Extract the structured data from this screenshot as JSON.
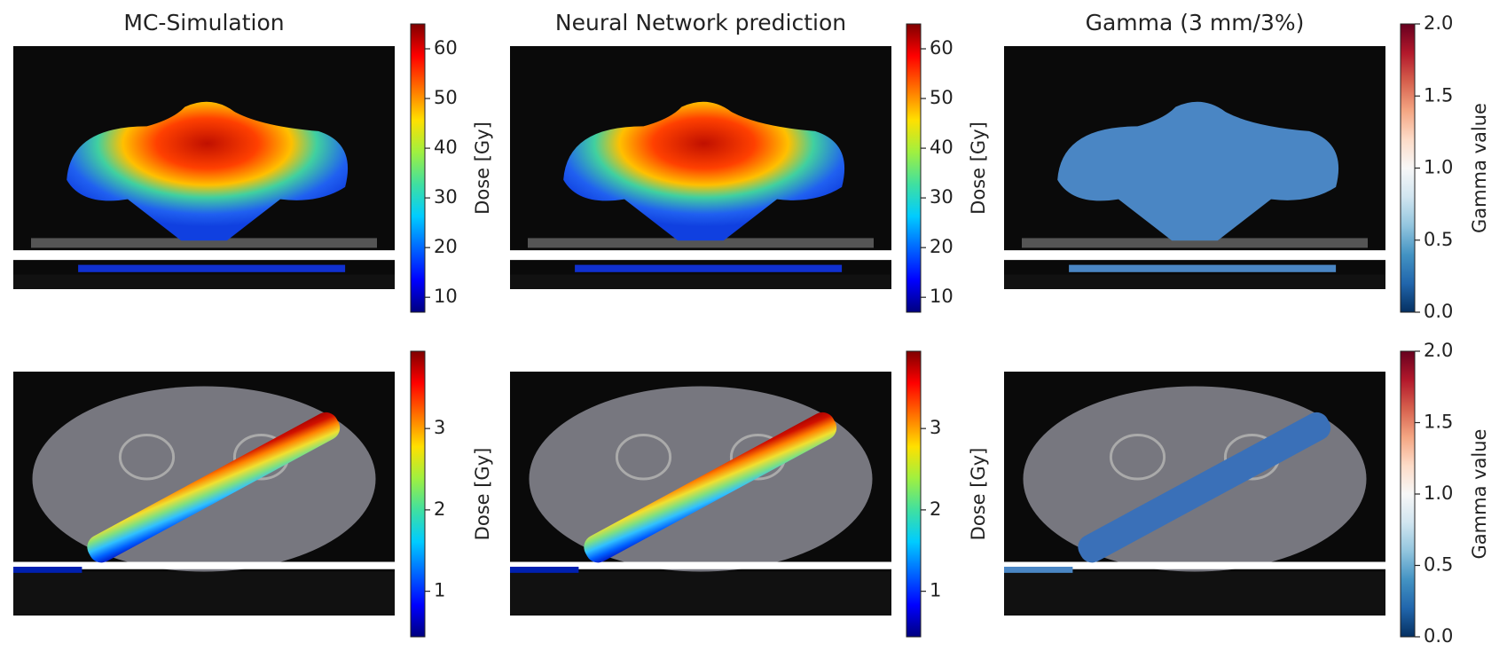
{
  "titles": [
    "MC-Simulation",
    "Neural Network prediction",
    "Gamma (3 mm/3%)"
  ],
  "rows": [
    {
      "colorbars": [
        {
          "label": "Dose [Gy]",
          "colormap": "jet",
          "lim": [
            7,
            65
          ],
          "ticks": [
            10,
            20,
            30,
            40,
            50,
            60
          ]
        },
        {
          "label": "Dose [Gy]",
          "colormap": "jet",
          "lim": [
            7,
            65
          ],
          "ticks": [
            10,
            20,
            30,
            40,
            50,
            60
          ]
        },
        {
          "label": "Gamma value",
          "colormap": "RdBu_r",
          "lim": [
            0,
            2
          ],
          "ticks": [
            {
              "value": 0,
              "label": "0.0"
            },
            {
              "value": 0.5,
              "label": "0.5"
            },
            {
              "value": 1,
              "label": "1.0"
            },
            {
              "value": 1.5,
              "label": "1.5"
            },
            {
              "value": 2,
              "label": "2.0"
            }
          ]
        }
      ]
    },
    {
      "colorbars": [
        {
          "label": "Dose [Gy]",
          "colormap": "jet",
          "lim": [
            0.44,
            3.95
          ],
          "ticks": [
            1,
            2,
            3
          ]
        },
        {
          "label": "Dose [Gy]",
          "colormap": "jet",
          "lim": [
            0.44,
            3.95
          ],
          "ticks": [
            1,
            2,
            3
          ]
        },
        {
          "label": "Gamma value",
          "colormap": "RdBu_r",
          "lim": [
            0,
            2
          ],
          "ticks": [
            {
              "value": 0,
              "label": "0.0"
            },
            {
              "value": 0.5,
              "label": "0.5"
            },
            {
              "value": 1,
              "label": "1.0"
            },
            {
              "value": 1.5,
              "label": "1.5"
            },
            {
              "value": 2,
              "label": "2.0"
            }
          ]
        }
      ]
    }
  ]
}
